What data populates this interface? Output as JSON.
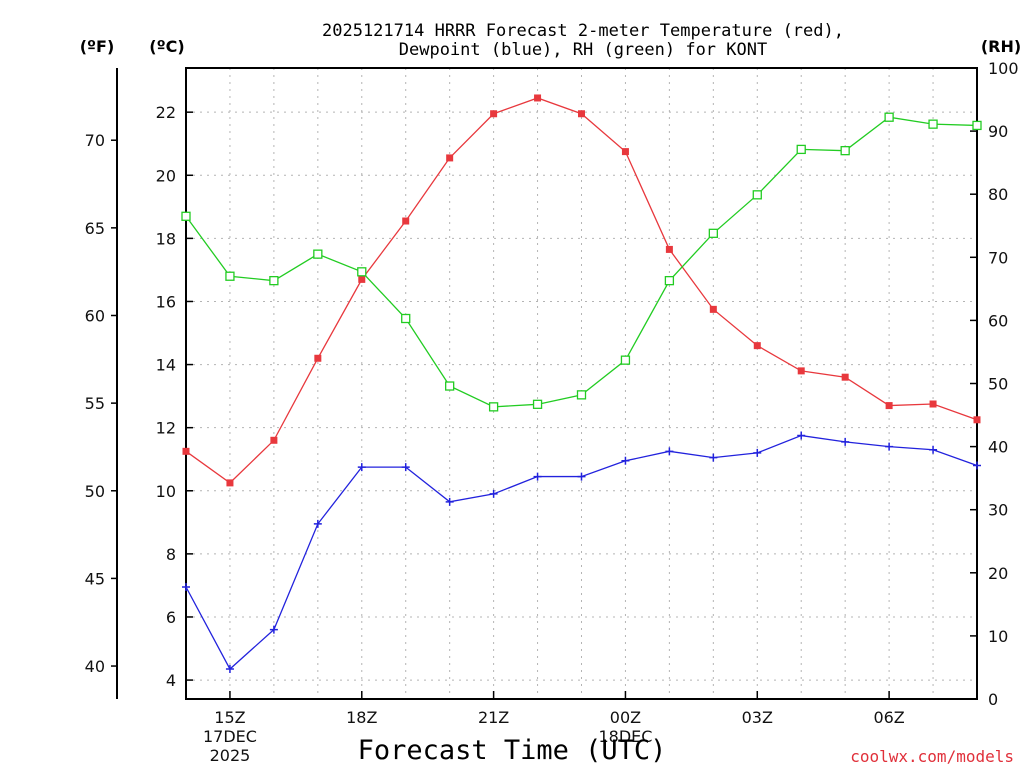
{
  "chart_data": {
    "type": "line",
    "title_line1": "2025121714 HRRR Forecast 2-meter Temperature (red),",
    "title_line2": "Dewpoint (blue), RH (green) for KONT",
    "xlabel": "Forecast Time (UTC)",
    "credit": "coolwx.com/models",
    "units": {
      "fahrenheit": "(ºF)",
      "celsius": "(ºC)",
      "rh": "(RH)"
    },
    "x_hours": [
      14,
      15,
      16,
      17,
      18,
      19,
      20,
      21,
      22,
      23,
      24,
      25,
      26,
      27,
      28,
      29,
      30,
      31,
      32
    ],
    "xlim": [
      14,
      32
    ],
    "x_ticks": [
      {
        "hour": 15,
        "lines": [
          "15Z",
          "17DEC",
          "2025"
        ]
      },
      {
        "hour": 18,
        "lines": [
          "18Z"
        ]
      },
      {
        "hour": 21,
        "lines": [
          "21Z"
        ]
      },
      {
        "hour": 24,
        "lines": [
          "00Z",
          "18DEC"
        ]
      },
      {
        "hour": 27,
        "lines": [
          "03Z"
        ]
      },
      {
        "hour": 30,
        "lines": [
          "06Z"
        ]
      }
    ],
    "celsius_axis": {
      "ylim": [
        3.4,
        23.4
      ],
      "ticks": [
        "4",
        "6",
        "8",
        "10",
        "12",
        "14",
        "16",
        "18",
        "20",
        "22"
      ]
    },
    "fahrenheit_axis": {
      "ticks": [
        "40",
        "45",
        "50",
        "55",
        "60",
        "65",
        "70"
      ]
    },
    "rh_axis": {
      "ylim": [
        0,
        100
      ],
      "ticks": [
        "0",
        "10",
        "20",
        "30",
        "40",
        "50",
        "60",
        "70",
        "80",
        "90",
        "100"
      ]
    },
    "series": [
      {
        "name": "2-meter Temperature",
        "axis": "celsius",
        "color": "#e8383d",
        "marker": "filled-square",
        "values": [
          11.25,
          10.25,
          11.6,
          14.2,
          16.7,
          18.55,
          20.55,
          21.95,
          22.45,
          21.95,
          20.75,
          17.65,
          15.75,
          14.6,
          13.8,
          13.6,
          12.7,
          12.75,
          12.25
        ]
      },
      {
        "name": "Dewpoint",
        "axis": "celsius",
        "color": "#2222dd",
        "marker": "plus",
        "values": [
          6.95,
          4.35,
          5.6,
          8.95,
          10.75,
          10.75,
          9.65,
          9.9,
          10.45,
          10.45,
          10.95,
          11.25,
          11.05,
          11.2,
          11.75,
          11.55,
          11.4,
          11.3,
          10.8
        ]
      },
      {
        "name": "RH",
        "axis": "rh",
        "color": "#22cc22",
        "marker": "open-square",
        "values": [
          76.5,
          67,
          66.3,
          70.5,
          67.7,
          60.3,
          49.6,
          46.3,
          46.7,
          48.2,
          53.7,
          66.3,
          73.8,
          79.9,
          87.1,
          86.9,
          92.2,
          91.1,
          90.9
        ]
      }
    ]
  }
}
